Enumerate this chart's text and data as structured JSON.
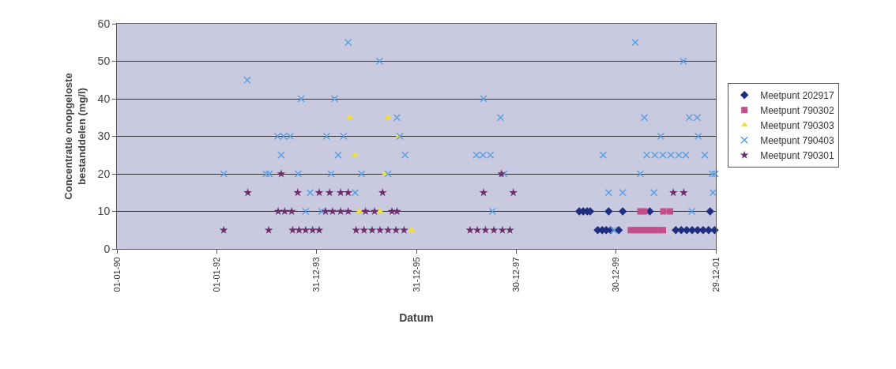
{
  "chart_data": {
    "type": "scatter",
    "xlabel": "Datum",
    "ylabel": "Concentratie onopgeloste bestanddelen (mg/l)",
    "xlim": [
      "1990-01-01",
      "2001-12-29"
    ],
    "xticks": [
      {
        "value": "1990-01-01",
        "label": "01-01-90"
      },
      {
        "value": "1992-01-01",
        "label": "01-01-92"
      },
      {
        "value": "1993-12-31",
        "label": "31-12-93"
      },
      {
        "value": "1995-12-31",
        "label": "31-12-95"
      },
      {
        "value": "1997-12-30",
        "label": "30-12-97"
      },
      {
        "value": "1999-12-30",
        "label": "30-12-99"
      },
      {
        "value": "2001-12-29",
        "label": "29-12-01"
      }
    ],
    "ylim": [
      0,
      60
    ],
    "yticks": [
      0,
      10,
      20,
      30,
      40,
      50,
      60
    ],
    "grid": "y",
    "legend": "right",
    "series": [
      {
        "name": "Meetpunt 202917",
        "color": "#1f2f7f",
        "marker": "diamond",
        "x": [
          "1999-04-05",
          "1999-05-04",
          "1999-06-02",
          "1999-06-24",
          "1999-11-06",
          "2000-02-17",
          "2000-09-02",
          "2001-11-17",
          "1999-08-18",
          "1999-09-20",
          "1999-10-19",
          "1999-11-21",
          "2000-01-19",
          "2001-03-11",
          "2001-04-20",
          "2001-05-30",
          "2001-07-09",
          "2001-08-18",
          "2001-09-27",
          "2001-11-06",
          "2001-12-20"
        ],
        "values": [
          10,
          10,
          10,
          10,
          10,
          10,
          10,
          10,
          5,
          5,
          5,
          5,
          5,
          5,
          5,
          5,
          5,
          5,
          5,
          5,
          5
        ]
      },
      {
        "name": "Meetpunt 790302",
        "color": "#c04f8a",
        "marker": "square",
        "x": [
          "2000-06-25",
          "2000-07-24",
          "2000-12-10",
          "2001-01-28",
          "2000-04-16",
          "2000-05-15",
          "2000-06-13",
          "2000-07-12",
          "2000-08-11",
          "2000-09-09",
          "2000-10-09",
          "2000-11-07",
          "2000-12-07"
        ],
        "values": [
          10,
          10,
          10,
          10,
          5,
          5,
          5,
          5,
          5,
          5,
          5,
          5,
          5
        ]
      },
      {
        "name": "Meetpunt 790303",
        "color": "#eee230",
        "marker": "triangle",
        "x": [
          "1994-08-30",
          "1995-06-07",
          "1994-10-09",
          "1995-08-22",
          "1995-05-15",
          "1994-11-07",
          "1995-04-09",
          "1995-11-25"
        ],
        "values": [
          35,
          35,
          25,
          30,
          20,
          10,
          10,
          5
        ]
      },
      {
        "name": "Meetpunt 790403",
        "color": "#5fa0e0",
        "marker": "cross",
        "x": [
          "1992-02-21",
          "1992-08-11",
          "1992-12-27",
          "1993-01-19",
          "1993-03-21",
          "1993-04-16",
          "1993-05-04",
          "1993-06-21",
          "1993-08-18",
          "1993-09-09",
          "1993-10-12",
          "1993-11-14",
          "1994-02-06",
          "1994-03-14",
          "1994-04-16",
          "1994-05-12",
          "1994-06-07",
          "1994-07-17",
          "1994-08-19",
          "1994-10-09",
          "1994-11-25",
          "1995-04-06",
          "1995-06-07",
          "1995-08-11",
          "1995-09-02",
          "1995-10-09",
          "1997-03-14",
          "1997-05-01",
          "1997-05-05",
          "1997-06-24",
          "1997-07-09",
          "1997-09-06",
          "1997-10-02",
          "1999-09-27",
          "1999-11-06",
          "1999-12-13",
          "2000-02-17",
          "2000-05-19",
          "2000-06-25",
          "2000-07-24",
          "2000-08-11",
          "2000-10-02",
          "2000-10-09",
          "2000-11-22",
          "2000-12-07",
          "2001-02-03",
          "2001-04-02",
          "2001-05-05",
          "2001-05-23",
          "2001-06-18",
          "2001-07-06",
          "2001-08-15",
          "2001-08-22",
          "2001-10-09",
          "2001-12-09",
          "2001-12-02",
          "2001-12-24"
        ],
        "values": [
          20,
          45,
          20,
          20,
          30,
          25,
          30,
          30,
          20,
          40,
          10,
          15,
          10,
          30,
          20,
          40,
          25,
          30,
          55,
          15,
          20,
          50,
          20,
          35,
          30,
          25,
          25,
          25,
          40,
          25,
          10,
          35,
          20,
          25,
          15,
          5,
          15,
          55,
          20,
          35,
          25,
          15,
          25,
          30,
          25,
          25,
          25,
          50,
          25,
          35,
          10,
          35,
          30,
          25,
          15,
          20,
          20
        ]
      },
      {
        "name": "Meetpunt 790301",
        "color": "#6b2f6b",
        "marker": "star",
        "x": [
          "1993-04-16",
          "1997-09-13",
          "1992-08-15",
          "1993-08-15",
          "1994-01-19",
          "1994-04-05",
          "1994-06-25",
          "1994-08-19",
          "1995-04-28",
          "1997-05-05",
          "1997-12-09",
          "2001-02-21",
          "2001-05-08",
          "1993-03-25",
          "1993-05-12",
          "1993-07-02",
          "1994-03-07",
          "1994-04-27",
          "1994-06-25",
          "1994-08-19",
          "1994-12-24",
          "1995-02-28",
          "1995-07-05",
          "1995-08-11",
          "1992-02-21",
          "1993-01-15",
          "1993-07-09",
          "1993-08-25",
          "1993-10-12",
          "1993-12-02",
          "1994-01-19",
          "1994-10-16",
          "1994-12-13",
          "1995-02-10",
          "1995-04-09",
          "1995-06-07",
          "1995-08-04",
          "1995-10-02",
          "1997-01-26",
          "1997-03-21",
          "1997-05-19",
          "1997-07-20",
          "1997-09-20",
          "1997-11-14"
        ],
        "values": [
          20,
          20,
          15,
          15,
          15,
          15,
          15,
          15,
          15,
          15,
          15,
          15,
          15,
          10,
          10,
          10,
          10,
          10,
          10,
          10,
          10,
          10,
          10,
          10,
          5,
          5,
          5,
          5,
          5,
          5,
          5,
          5,
          5,
          5,
          5,
          5,
          5,
          5,
          5,
          5,
          5,
          5,
          5,
          5
        ]
      }
    ]
  }
}
